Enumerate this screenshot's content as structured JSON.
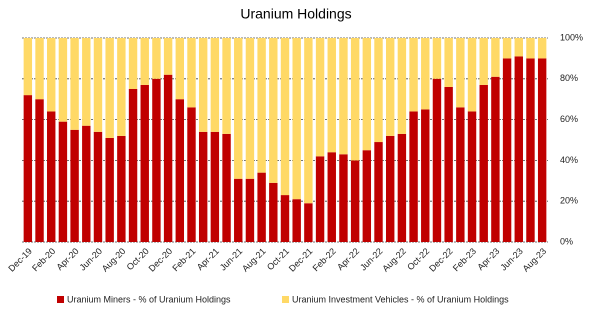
{
  "chart_data": {
    "type": "stacked_bar",
    "title": "Uranium Holdings",
    "categories": [
      "Dec-19",
      null,
      "Feb-20",
      null,
      "Apr-20",
      null,
      "Jun-20",
      null,
      "Aug-20",
      null,
      "Oct-20",
      null,
      "Dec-20",
      null,
      "Feb-21",
      null,
      "Apr-21",
      null,
      "Jun-21",
      null,
      "Aug-21",
      null,
      "Oct-21",
      null,
      "Dec-21",
      null,
      "Feb-22",
      null,
      "Apr-22",
      null,
      "Jun-22",
      null,
      "Aug-22",
      null,
      "Oct-22",
      null,
      "Dec-22",
      null,
      "Feb-23",
      null,
      "Apr-23",
      null,
      "Jun-23",
      null,
      "Aug-23"
    ],
    "series": [
      {
        "name": "Uranium Miners - % of Uranium Holdings",
        "color": "#c00000",
        "values": [
          72,
          70,
          64,
          59,
          55,
          57,
          54,
          51,
          52,
          75,
          77,
          80,
          82,
          70,
          66,
          54,
          54,
          53,
          31,
          31,
          34,
          29,
          23,
          21,
          19,
          42,
          44,
          43,
          40,
          45,
          49,
          52,
          53,
          64,
          65,
          80,
          76,
          66,
          64,
          77,
          81,
          90,
          91,
          90,
          90
        ]
      },
      {
        "name": "Uranium Investment Vehicles - % of Uranium Holdings",
        "color": "#ffd966",
        "values": [
          28,
          30,
          36,
          41,
          45,
          43,
          46,
          49,
          48,
          25,
          23,
          20,
          18,
          30,
          34,
          46,
          46,
          47,
          69,
          69,
          66,
          71,
          77,
          79,
          81,
          58,
          56,
          57,
          60,
          55,
          51,
          48,
          47,
          36,
          35,
          20,
          24,
          34,
          36,
          23,
          19,
          10,
          9,
          10,
          10
        ]
      }
    ],
    "ylim": [
      0,
      100
    ],
    "yticks": [
      {
        "value": 0,
        "label": "0%"
      },
      {
        "value": 20,
        "label": "20%"
      },
      {
        "value": 40,
        "label": "40%"
      },
      {
        "value": 60,
        "label": "60%"
      },
      {
        "value": 80,
        "label": "80%"
      },
      {
        "value": 100,
        "label": "100%"
      }
    ],
    "grid": true,
    "legend": "bottom"
  }
}
